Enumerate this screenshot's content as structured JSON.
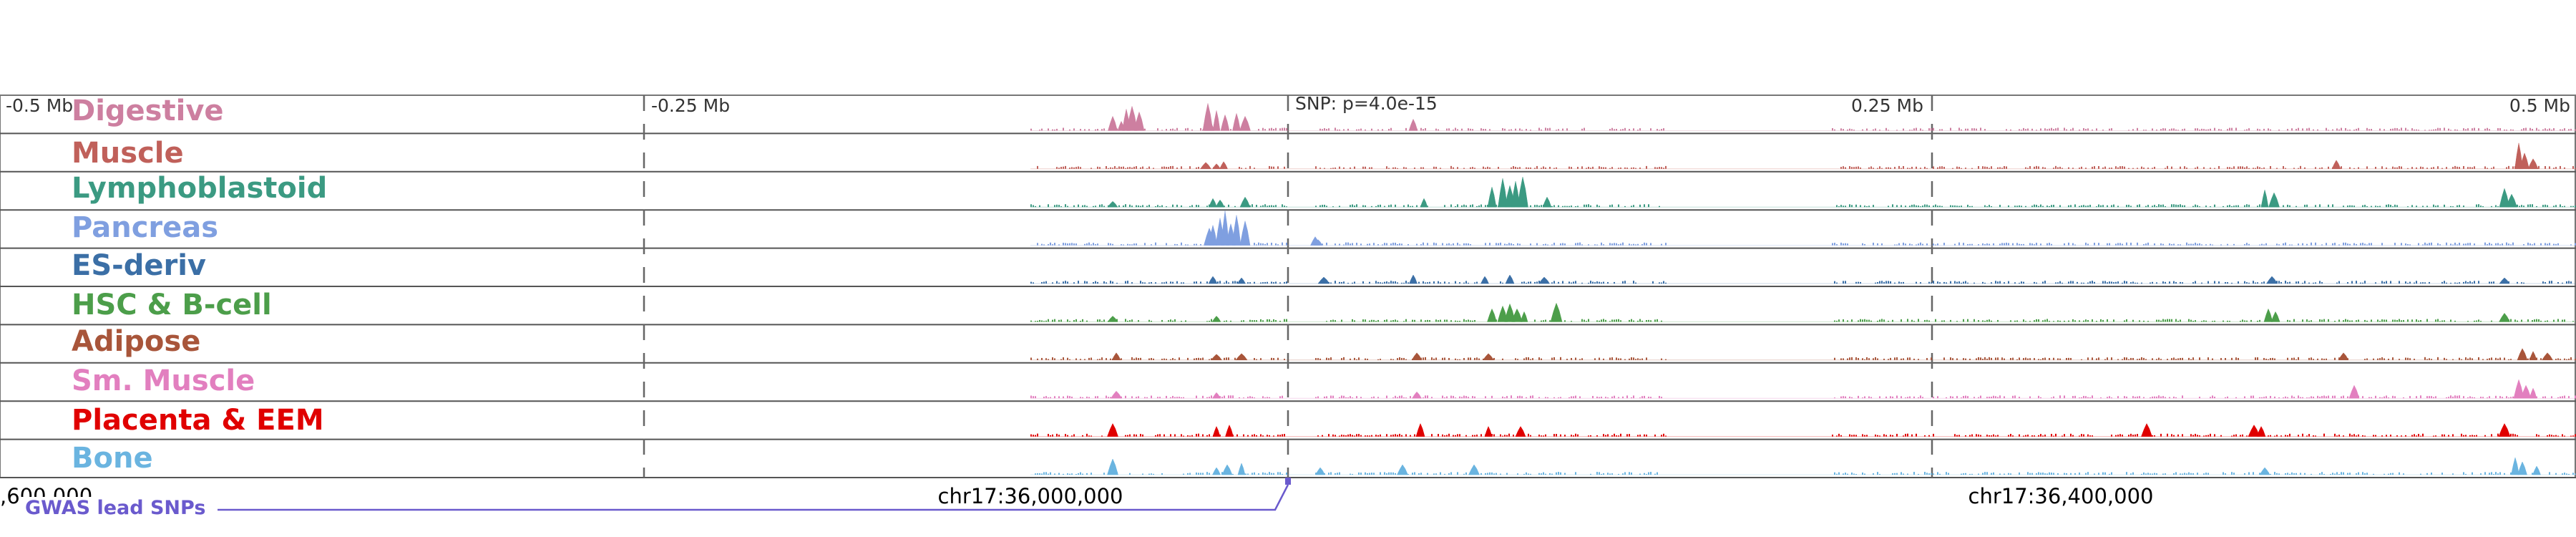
{
  "header": {
    "dist_left_far": "-0.5 Mb",
    "dist_left_near": "-0.25 Mb",
    "snp_label": "SNP: p=4.0e-15",
    "dist_right_near": "0.25 Mb",
    "dist_right_far": "0.5 Mb"
  },
  "tracks": [
    {
      "label": "Digestive",
      "color": "#cd7fa0",
      "peaks": [
        [
          1555,
          20
        ],
        [
          1567,
          13
        ],
        [
          1574,
          30
        ],
        [
          1582,
          34
        ],
        [
          1592,
          26
        ],
        [
          1690,
          15
        ],
        [
          1688,
          38
        ],
        [
          1700,
          28
        ],
        [
          1712,
          22
        ],
        [
          1728,
          24
        ],
        [
          1740,
          20
        ],
        [
          1975,
          16
        ]
      ]
    },
    {
      "label": "Muscle",
      "color": "#c0605a",
      "peaks": [
        [
          1685,
          9
        ],
        [
          1700,
          7
        ],
        [
          1710,
          10
        ],
        [
          3520,
          36
        ],
        [
          3528,
          22
        ],
        [
          3540,
          14
        ],
        [
          3265,
          12
        ]
      ]
    },
    {
      "label": "Lymphoblastoid",
      "color": "#3b9a82",
      "peaks": [
        [
          1555,
          8
        ],
        [
          1695,
          12
        ],
        [
          1705,
          10
        ],
        [
          1740,
          14
        ],
        [
          1990,
          12
        ],
        [
          2085,
          28
        ],
        [
          2100,
          40
        ],
        [
          2110,
          30
        ],
        [
          2118,
          36
        ],
        [
          2128,
          42
        ],
        [
          2162,
          14
        ],
        [
          3165,
          24
        ],
        [
          3178,
          20
        ],
        [
          3500,
          26
        ],
        [
          3510,
          18
        ]
      ]
    },
    {
      "label": "Pancreas",
      "color": "#7f9fe0",
      "peaks": [
        [
          1690,
          24
        ],
        [
          1695,
          28
        ],
        [
          1705,
          38
        ],
        [
          1712,
          48
        ],
        [
          1720,
          30
        ],
        [
          1728,
          42
        ],
        [
          1740,
          34
        ],
        [
          1838,
          12
        ],
        [
          1842,
          8
        ]
      ]
    },
    {
      "label": "ES-deriv",
      "color": "#3b6fa6",
      "peaks": [
        [
          1695,
          10
        ],
        [
          1735,
          8
        ],
        [
          1850,
          9
        ],
        [
          1975,
          12
        ],
        [
          2075,
          10
        ],
        [
          2110,
          12
        ],
        [
          2158,
          9
        ],
        [
          3175,
          10
        ],
        [
          3500,
          8
        ]
      ]
    },
    {
      "label": "HSC & B-cell",
      "color": "#4c9e4a",
      "peaks": [
        [
          1555,
          8
        ],
        [
          1700,
          8
        ],
        [
          2085,
          18
        ],
        [
          2100,
          22
        ],
        [
          2110,
          25
        ],
        [
          2120,
          18
        ],
        [
          2130,
          14
        ],
        [
          2175,
          26
        ],
        [
          3170,
          18
        ],
        [
          3180,
          14
        ],
        [
          3500,
          12
        ]
      ]
    },
    {
      "label": "Adipose",
      "color": "#a8553a",
      "peaks": [
        [
          1560,
          10
        ],
        [
          1700,
          8
        ],
        [
          1735,
          9
        ],
        [
          1980,
          10
        ],
        [
          2080,
          9
        ],
        [
          3275,
          10
        ],
        [
          3525,
          16
        ],
        [
          3540,
          12
        ],
        [
          3560,
          10
        ]
      ]
    },
    {
      "label": "Sm. Muscle",
      "color": "#e27fbf",
      "peaks": [
        [
          1560,
          10
        ],
        [
          1700,
          8
        ],
        [
          1980,
          9
        ],
        [
          3290,
          18
        ],
        [
          3520,
          26
        ],
        [
          3530,
          18
        ],
        [
          3540,
          14
        ]
      ]
    },
    {
      "label": "Placenta & EEM",
      "color": "#e00000",
      "peaks": [
        [
          1555,
          18
        ],
        [
          1700,
          14
        ],
        [
          1718,
          16
        ],
        [
          1985,
          18
        ],
        [
          2080,
          14
        ],
        [
          2125,
          14
        ],
        [
          3000,
          18
        ],
        [
          3150,
          16
        ],
        [
          3160,
          14
        ],
        [
          3500,
          18
        ]
      ]
    },
    {
      "label": "Bone",
      "color": "#6ab4e0",
      "peaks": [
        [
          1555,
          22
        ],
        [
          1700,
          10
        ],
        [
          1715,
          14
        ],
        [
          1735,
          16
        ],
        [
          1845,
          10
        ],
        [
          1960,
          14
        ],
        [
          2060,
          14
        ],
        [
          3165,
          10
        ],
        [
          3515,
          24
        ],
        [
          3525,
          18
        ],
        [
          3545,
          12
        ]
      ]
    }
  ],
  "axis": {
    "coord_left": ",600,000",
    "coord_center": "chr17:36,000,000",
    "coord_right": "chr17:36,400,000"
  },
  "gwas": {
    "label": "GWAS lead SNPs",
    "color": "#6a5acd"
  }
}
